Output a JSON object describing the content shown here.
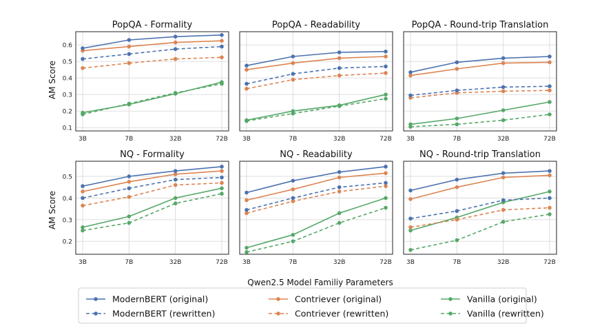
{
  "chart_data": {
    "type": "line",
    "xlabel": "Qwen2.5 Model Familiy Parameters",
    "categories": [
      "3B",
      "7B",
      "32B",
      "72B"
    ],
    "colors": {
      "modernbert": "#4c72b0",
      "contriever": "#dd8452",
      "vanilla": "#55a868"
    },
    "legend": {
      "placement": "bottom-center",
      "entries": [
        {
          "key": "mb_o",
          "label": "ModernBERT (original)",
          "color": "#4c72b0",
          "dashed": false
        },
        {
          "key": "ct_o",
          "label": "Contriever (original)",
          "color": "#dd8452",
          "dashed": false
        },
        {
          "key": "va_o",
          "label": "Vanilla (original)",
          "color": "#55a868",
          "dashed": false
        },
        {
          "key": "mb_r",
          "label": "ModernBERT (rewritten)",
          "color": "#4c72b0",
          "dashed": true
        },
        {
          "key": "ct_r",
          "label": "Contriever (rewritten)",
          "color": "#dd8452",
          "dashed": true
        },
        {
          "key": "va_r",
          "label": "Vanilla (rewritten)",
          "color": "#55a868",
          "dashed": true
        }
      ]
    },
    "rows": [
      {
        "ylabel": "AM Score",
        "ylim": [
          0.08,
          0.68
        ],
        "yticks": [
          0.1,
          0.2,
          0.3,
          0.4,
          0.5,
          0.6
        ],
        "ytick_labels": [
          "0.1",
          "0.2",
          "0.3",
          "0.4",
          "0.5",
          "0.6"
        ],
        "panels": [
          {
            "title": "PopQA - Formality",
            "series": {
              "mb_o": [
                0.58,
                0.63,
                0.65,
                0.66
              ],
              "ct_o": [
                0.565,
                0.59,
                0.615,
                0.625
              ],
              "va_o": [
                0.19,
                0.24,
                0.305,
                0.375
              ],
              "mb_r": [
                0.515,
                0.545,
                0.575,
                0.59
              ],
              "ct_r": [
                0.46,
                0.49,
                0.515,
                0.525
              ],
              "va_r": [
                0.18,
                0.245,
                0.31,
                0.365
              ]
            }
          },
          {
            "title": "PopQA - Readability",
            "series": {
              "mb_o": [
                0.475,
                0.53,
                0.555,
                0.56
              ],
              "ct_o": [
                0.45,
                0.49,
                0.52,
                0.53
              ],
              "va_o": [
                0.145,
                0.2,
                0.235,
                0.3
              ],
              "mb_r": [
                0.365,
                0.425,
                0.46,
                0.47
              ],
              "ct_r": [
                0.335,
                0.39,
                0.415,
                0.43
              ],
              "va_r": [
                0.14,
                0.185,
                0.23,
                0.275
              ]
            }
          },
          {
            "title": "PopQA - Round-trip Translation",
            "series": {
              "mb_o": [
                0.435,
                0.495,
                0.52,
                0.53
              ],
              "ct_o": [
                0.415,
                0.455,
                0.49,
                0.495
              ],
              "va_o": [
                0.12,
                0.155,
                0.205,
                0.255
              ],
              "mb_r": [
                0.295,
                0.325,
                0.345,
                0.35
              ],
              "ct_r": [
                0.28,
                0.31,
                0.32,
                0.325
              ],
              "va_r": [
                0.105,
                0.12,
                0.145,
                0.18
              ]
            }
          }
        ]
      },
      {
        "ylabel": "AM Score",
        "ylim": [
          0.14,
          0.57
        ],
        "yticks": [
          0.2,
          0.3,
          0.4,
          0.5
        ],
        "ytick_labels": [
          "0.2",
          "0.3",
          "0.4",
          "0.5"
        ],
        "panels": [
          {
            "title": "NQ - Formality",
            "series": {
              "mb_o": [
                0.455,
                0.5,
                0.525,
                0.545
              ],
              "ct_o": [
                0.43,
                0.475,
                0.51,
                0.525
              ],
              "va_o": [
                0.265,
                0.315,
                0.4,
                0.445
              ],
              "mb_r": [
                0.4,
                0.445,
                0.485,
                0.495
              ],
              "ct_r": [
                0.365,
                0.405,
                0.46,
                0.47
              ],
              "va_r": [
                0.25,
                0.285,
                0.375,
                0.42
              ]
            }
          },
          {
            "title": "NQ - Readability",
            "series": {
              "mb_o": [
                0.425,
                0.48,
                0.52,
                0.545
              ],
              "ct_o": [
                0.39,
                0.44,
                0.495,
                0.515
              ],
              "va_o": [
                0.17,
                0.23,
                0.33,
                0.4
              ],
              "mb_r": [
                0.345,
                0.4,
                0.45,
                0.47
              ],
              "ct_r": [
                0.33,
                0.385,
                0.43,
                0.455
              ],
              "va_r": [
                0.15,
                0.2,
                0.285,
                0.355
              ]
            }
          },
          {
            "title": "NQ - Round-trip Translation",
            "series": {
              "mb_o": [
                0.435,
                0.485,
                0.515,
                0.525
              ],
              "ct_o": [
                0.395,
                0.45,
                0.495,
                0.505
              ],
              "va_o": [
                0.25,
                0.31,
                0.38,
                0.43
              ],
              "mb_r": [
                0.305,
                0.34,
                0.39,
                0.4
              ],
              "ct_r": [
                0.265,
                0.3,
                0.345,
                0.355
              ],
              "va_r": [
                0.16,
                0.205,
                0.29,
                0.325
              ]
            }
          }
        ]
      }
    ]
  }
}
